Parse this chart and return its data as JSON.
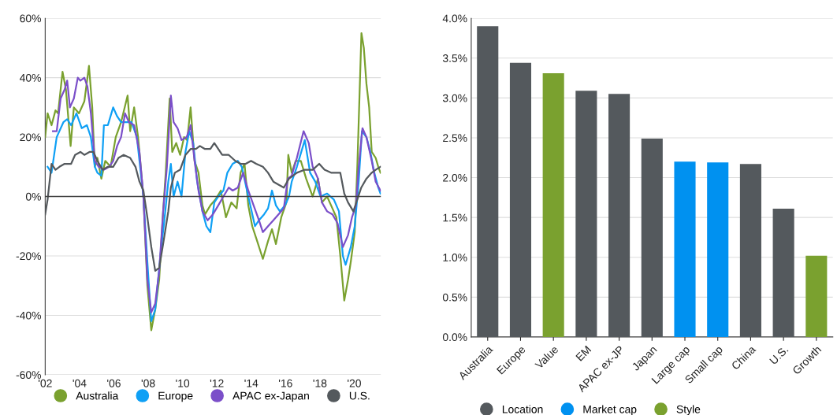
{
  "chart_data": [
    {
      "type": "line",
      "xlim": [
        2002,
        2021.55
      ],
      "ylim": [
        -60,
        60
      ],
      "xticks": [
        {
          "value": 2002,
          "label": "'02"
        },
        {
          "value": 2004,
          "label": "'04"
        },
        {
          "value": 2006,
          "label": "'06"
        },
        {
          "value": 2008,
          "label": "'08"
        },
        {
          "value": 2010,
          "label": "'10"
        },
        {
          "value": 2012,
          "label": "'12"
        },
        {
          "value": 2014,
          "label": "'14"
        },
        {
          "value": 2016,
          "label": "'16"
        },
        {
          "value": 2018,
          "label": "'18"
        },
        {
          "value": 2020,
          "label": "'20"
        }
      ],
      "yticks": [
        {
          "value": -60,
          "label": "-60%"
        },
        {
          "value": -40,
          "label": "-40%"
        },
        {
          "value": -20,
          "label": "-20%"
        },
        {
          "value": 0,
          "label": "0%"
        },
        {
          "value": 20,
          "label": "20%"
        },
        {
          "value": 40,
          "label": "40%"
        },
        {
          "value": 60,
          "label": "60%"
        }
      ],
      "grid": "y",
      "legend": "bottom",
      "marker": "none",
      "line_style": "solid",
      "ref_lines": [
        {
          "axis": "y",
          "value": 0,
          "color": "#404040"
        }
      ],
      "series": [
        {
          "name": "Australia",
          "color": "#7aa12f",
          "x": [
            2002.0,
            2002.14,
            2002.37,
            2002.6,
            2002.75,
            2003.01,
            2003.21,
            2003.48,
            2003.67,
            2003.97,
            2004.28,
            2004.55,
            2004.74,
            2004.89,
            2005.04,
            2005.27,
            2005.5,
            2005.81,
            2006.11,
            2006.42,
            2006.8,
            2006.95,
            2007.18,
            2007.41,
            2007.72,
            2007.95,
            2008.18,
            2008.41,
            2008.64,
            2008.87,
            2009.02,
            2009.25,
            2009.4,
            2009.63,
            2009.86,
            2010.09,
            2010.27,
            2010.47,
            2010.7,
            2010.93,
            2011.16,
            2011.31,
            2011.62,
            2011.92,
            2012.23,
            2012.53,
            2012.84,
            2013.15,
            2013.38,
            2013.61,
            2013.83,
            2014.06,
            2014.29,
            2014.68,
            2014.98,
            2015.21,
            2015.44,
            2015.75,
            2016.05,
            2016.16,
            2016.36,
            2016.59,
            2016.89,
            2017.2,
            2017.58,
            2017.89,
            2018.12,
            2018.42,
            2018.73,
            2018.96,
            2019.19,
            2019.42,
            2019.64,
            2019.8,
            2020.03,
            2020.18,
            2020.42,
            2020.56,
            2020.71,
            2020.87,
            2021.02,
            2021.25,
            2021.4,
            2021.53
          ],
          "values": [
            20,
            28,
            24,
            29,
            28,
            42,
            36,
            17,
            30,
            28,
            32,
            44,
            30,
            10,
            13,
            6,
            12,
            10,
            20,
            25,
            34,
            22,
            30,
            20,
            0,
            -30,
            -45,
            -38,
            -28,
            -5,
            8,
            33,
            15,
            18,
            14,
            20,
            19,
            30,
            12,
            8,
            -3,
            -6,
            -3,
            -1,
            2,
            -7,
            -2,
            -4,
            8,
            11,
            -3,
            -10,
            -14,
            -21,
            -15,
            -11,
            -16,
            -7,
            -2,
            14,
            8,
            12,
            12,
            6,
            0,
            6,
            -2,
            0,
            -4,
            -7,
            -20,
            -35,
            -28,
            -22,
            -12,
            10,
            55,
            50,
            38,
            30,
            15,
            13,
            10,
            8
          ]
        },
        {
          "name": "Europe",
          "color": "#0fa0f5",
          "x": [
            2002.14,
            2002.37,
            2002.67,
            2003.06,
            2003.28,
            2003.51,
            2003.82,
            2004.13,
            2004.43,
            2004.66,
            2004.89,
            2005.04,
            2005.27,
            2005.42,
            2005.65,
            2005.96,
            2006.19,
            2006.42,
            2006.72,
            2007.03,
            2007.34,
            2007.72,
            2007.95,
            2008.18,
            2008.41,
            2008.71,
            2008.94,
            2009.17,
            2009.32,
            2009.48,
            2009.71,
            2009.94,
            2010.17,
            2010.39,
            2010.62,
            2010.85,
            2011.16,
            2011.39,
            2011.62,
            2011.85,
            2012.08,
            2012.38,
            2012.61,
            2012.92,
            2013.22,
            2013.45,
            2013.83,
            2014.22,
            2014.45,
            2014.75,
            2014.98,
            2015.21,
            2015.44,
            2015.67,
            2015.97,
            2016.2,
            2016.36,
            2016.66,
            2017.12,
            2017.43,
            2017.73,
            2018.04,
            2018.42,
            2018.81,
            2019.11,
            2019.34,
            2019.5,
            2019.8,
            2020.03,
            2020.26,
            2020.45,
            2020.71,
            2020.94,
            2021.17,
            2021.4,
            2021.53
          ],
          "values": [
            10,
            8,
            20,
            25,
            26,
            24,
            28,
            23,
            24,
            20,
            10,
            8,
            7,
            24,
            24,
            30,
            27,
            25,
            25,
            25,
            20,
            0,
            -22,
            -42,
            -38,
            -20,
            -8,
            5,
            11,
            0,
            5,
            0,
            15,
            22,
            18,
            5,
            -5,
            -10,
            -12,
            -2,
            0,
            2,
            8,
            11,
            12,
            10,
            0,
            -10,
            -8,
            -6,
            -4,
            2,
            -3,
            -5,
            -3,
            0,
            5,
            10,
            19,
            8,
            5,
            0,
            1,
            -1,
            -5,
            -20,
            -23,
            -17,
            -10,
            5,
            22,
            20,
            15,
            8,
            3,
            1
          ]
        },
        {
          "name": "APAC ex-Japan",
          "color": "#7b4fc9",
          "x": [
            2002.45,
            2002.67,
            2002.9,
            2003.13,
            2003.28,
            2003.44,
            2003.67,
            2003.9,
            2004.05,
            2004.28,
            2004.46,
            2004.66,
            2004.89,
            2005.12,
            2005.42,
            2005.73,
            2005.96,
            2006.19,
            2006.42,
            2006.65,
            2006.88,
            2007.18,
            2007.49,
            2007.72,
            2007.95,
            2008.18,
            2008.41,
            2008.64,
            2008.87,
            2009.09,
            2009.32,
            2009.48,
            2009.71,
            2009.94,
            2010.24,
            2010.47,
            2010.7,
            2010.93,
            2011.16,
            2011.46,
            2011.77,
            2012.08,
            2012.38,
            2012.69,
            2012.92,
            2013.22,
            2013.53,
            2013.83,
            2014.14,
            2014.45,
            2014.68,
            2014.98,
            2015.29,
            2015.59,
            2015.9,
            2016.13,
            2016.36,
            2016.66,
            2017.05,
            2017.35,
            2017.58,
            2017.89,
            2018.12,
            2018.42,
            2018.73,
            2019.03,
            2019.34,
            2019.64,
            2019.87,
            2020.1,
            2020.26,
            2020.48,
            2020.71,
            2021.02,
            2021.25,
            2021.53
          ],
          "values": [
            22,
            22,
            33,
            36,
            39,
            30,
            33,
            40,
            39,
            40,
            37,
            28,
            12,
            10,
            9,
            10,
            12,
            17,
            20,
            28,
            25,
            24,
            15,
            0,
            -28,
            -39,
            -36,
            -25,
            -5,
            10,
            34,
            25,
            23,
            19,
            20,
            24,
            12,
            2,
            -5,
            -8,
            -6,
            -3,
            0,
            3,
            2,
            3,
            8,
            2,
            -3,
            -8,
            -12,
            -10,
            -8,
            -6,
            -4,
            6,
            7,
            13,
            22,
            18,
            10,
            6,
            -2,
            -5,
            -6,
            -9,
            -17,
            -13,
            -7,
            -3,
            10,
            23,
            20,
            12,
            5,
            2
          ]
        },
        {
          "name": "U.S.",
          "color": "#54595d",
          "x": [
            2002.0,
            2002.14,
            2002.37,
            2002.6,
            2002.83,
            2003.13,
            2003.51,
            2003.74,
            2004.05,
            2004.28,
            2004.58,
            2004.81,
            2005.04,
            2005.35,
            2005.65,
            2005.96,
            2006.27,
            2006.57,
            2006.95,
            2007.26,
            2007.49,
            2007.72,
            2007.95,
            2008.18,
            2008.41,
            2008.64,
            2008.87,
            2009.17,
            2009.32,
            2009.55,
            2009.86,
            2010.17,
            2010.47,
            2010.78,
            2011.01,
            2011.31,
            2011.62,
            2011.85,
            2012.08,
            2012.31,
            2012.69,
            2013.07,
            2013.38,
            2013.68,
            2013.99,
            2014.29,
            2014.68,
            2014.98,
            2015.29,
            2015.59,
            2015.9,
            2016.2,
            2016.66,
            2017.12,
            2017.58,
            2017.96,
            2018.27,
            2018.65,
            2018.96,
            2019.19,
            2019.42,
            2019.64,
            2019.95,
            2020.18,
            2020.41,
            2020.71,
            2021.02,
            2021.25,
            2021.53
          ],
          "values": [
            -6,
            -1,
            11,
            9,
            10,
            11,
            11,
            14,
            15,
            14,
            15,
            15,
            12,
            9,
            10,
            10,
            13,
            14,
            13,
            10,
            5,
            2,
            -7,
            -17,
            -25,
            -24,
            -16,
            -5,
            3,
            8,
            9,
            14,
            16,
            16,
            17,
            16,
            16,
            18,
            16,
            14,
            14,
            12,
            11,
            11,
            12,
            11,
            10,
            8,
            5,
            4,
            3,
            6,
            8,
            9,
            9,
            11,
            9,
            8,
            8,
            8,
            1,
            -2,
            -5,
            -1,
            3,
            6,
            8,
            9,
            10
          ]
        }
      ]
    },
    {
      "type": "bar",
      "ylim": [
        0,
        4
      ],
      "yticks": [
        {
          "value": 0,
          "label": "0.0%"
        },
        {
          "value": 0.5,
          "label": "0.5%"
        },
        {
          "value": 1,
          "label": "1.0%"
        },
        {
          "value": 1.5,
          "label": "1.5%"
        },
        {
          "value": 2,
          "label": "2.0%"
        },
        {
          "value": 2.5,
          "label": "2.5%"
        },
        {
          "value": 3,
          "label": "3.0%"
        },
        {
          "value": 3.5,
          "label": "3.5%"
        },
        {
          "value": 4,
          "label": "4.0%"
        }
      ],
      "grid": "y",
      "legend": "bottom",
      "categories": [
        "Australia",
        "Europe",
        "Value",
        "EM",
        "APAC ex-JP",
        "Japan",
        "Large cap",
        "Small cap",
        "China",
        "U.S.",
        "Growth"
      ],
      "series": [
        {
          "name": "Location",
          "color": "#54595d",
          "values": [
            3.9,
            3.44,
            null,
            3.09,
            3.05,
            2.49,
            null,
            null,
            2.17,
            1.61,
            null
          ]
        },
        {
          "name": "Market cap",
          "color": "#0091f0",
          "values": [
            null,
            null,
            null,
            null,
            null,
            null,
            2.2,
            2.19,
            null,
            null,
            null
          ]
        },
        {
          "name": "Style",
          "color": "#7aa12f",
          "values": [
            null,
            null,
            3.31,
            null,
            null,
            null,
            null,
            null,
            null,
            null,
            1.02
          ]
        }
      ]
    }
  ]
}
